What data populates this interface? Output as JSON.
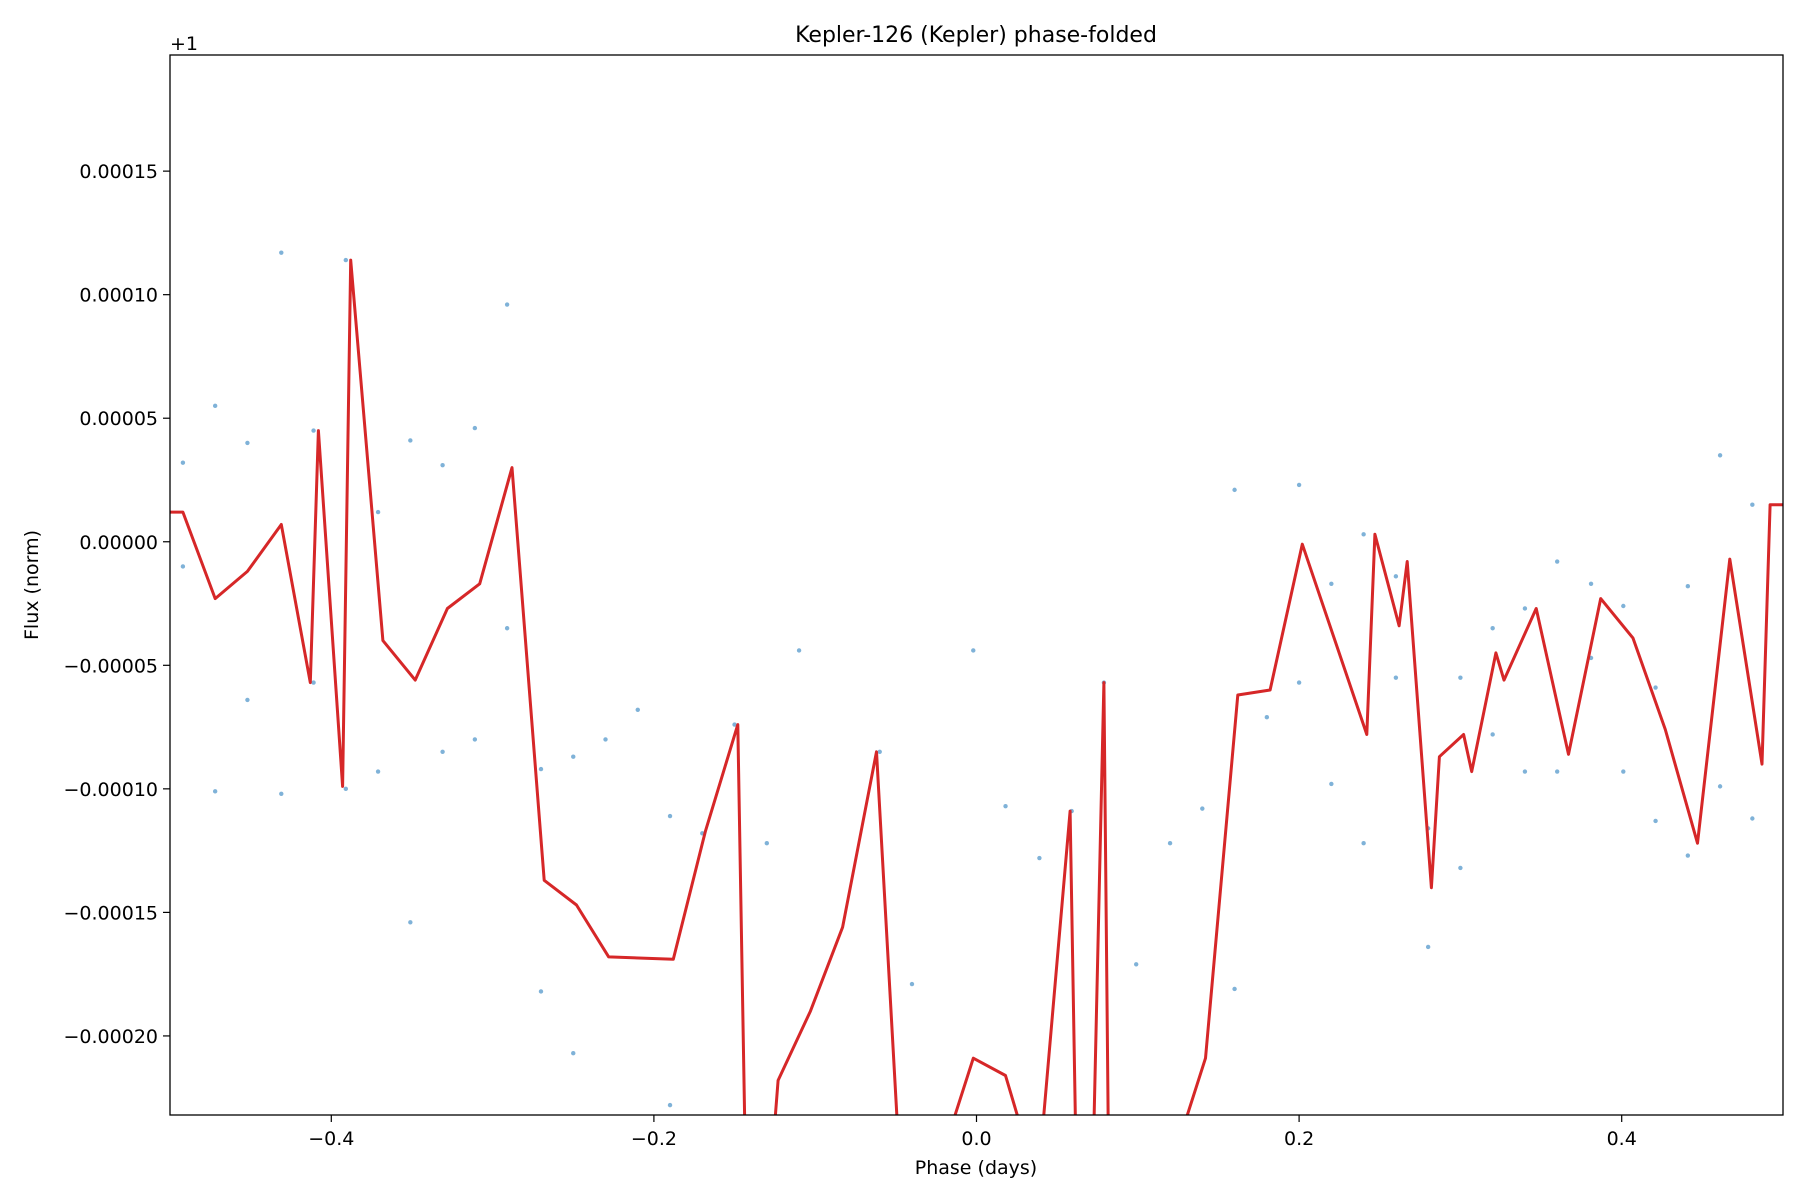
{
  "chart_data": {
    "type": "scatter",
    "title": "Kepler-126 (Kepler) phase-folded",
    "xlabel": "Phase (days)",
    "ylabel": "Flux (norm)",
    "y_offset_label": "+1",
    "xlim": [
      -0.5,
      0.5
    ],
    "ylim": [
      -0.000232,
      0.000197
    ],
    "x_ticks": [
      -0.4,
      -0.2,
      0.0,
      0.2,
      0.4
    ],
    "x_tick_labels": [
      "−0.4",
      "−0.2",
      "0.0",
      "0.2",
      "0.4"
    ],
    "y_ticks": [
      -0.0002,
      -0.00015,
      -0.0001,
      -5e-05,
      0.0,
      5e-05,
      0.0001,
      0.00015
    ],
    "y_tick_labels": [
      "−0.00020",
      "−0.00015",
      "−0.00010",
      "−0.00005",
      "0.00000",
      "0.00005",
      "0.00010",
      "0.00015"
    ],
    "grid": false,
    "colors": {
      "points": "#7fb2d8",
      "binned_line": "#d62728"
    },
    "series": [
      {
        "kind": "scatter",
        "points": [
          [
            -0.492,
            3.2e-05
          ],
          [
            -0.492,
            -1e-05
          ],
          [
            -0.472,
            5.5e-05
          ],
          [
            -0.472,
            -0.000101
          ],
          [
            -0.452,
            4e-05
          ],
          [
            -0.452,
            -6.4e-05
          ],
          [
            -0.431,
            0.000117
          ],
          [
            -0.431,
            -0.000102
          ],
          [
            -0.411,
            4.5e-05
          ],
          [
            -0.411,
            -5.7e-05
          ],
          [
            -0.391,
            0.000114
          ],
          [
            -0.391,
            -0.0001
          ],
          [
            -0.371,
            1.2e-05
          ],
          [
            -0.371,
            -9.3e-05
          ],
          [
            -0.351,
            4.1e-05
          ],
          [
            -0.351,
            -0.000154
          ],
          [
            -0.331,
            3.1e-05
          ],
          [
            -0.331,
            -8.5e-05
          ],
          [
            -0.311,
            4.6e-05
          ],
          [
            -0.311,
            -8e-05
          ],
          [
            -0.291,
            9.6e-05
          ],
          [
            -0.291,
            -3.5e-05
          ],
          [
            -0.27,
            -9.2e-05
          ],
          [
            -0.27,
            -0.000182
          ],
          [
            -0.25,
            -8.7e-05
          ],
          [
            -0.25,
            -0.000207
          ],
          [
            -0.23,
            -8e-05
          ],
          [
            -0.21,
            -6.8e-05
          ],
          [
            -0.19,
            -0.000111
          ],
          [
            -0.19,
            -0.000228
          ],
          [
            -0.17,
            -0.000118
          ],
          [
            -0.15,
            -7.4e-05
          ],
          [
            -0.13,
            -0.000122
          ],
          [
            -0.11,
            -4.4e-05
          ],
          [
            -0.06,
            -8.5e-05
          ],
          [
            -0.04,
            -0.000179
          ],
          [
            -0.002,
            -4.4e-05
          ],
          [
            0.018,
            -0.000107
          ],
          [
            0.039,
            -0.000128
          ],
          [
            0.059,
            -0.000109
          ],
          [
            0.079,
            -5.7e-05
          ],
          [
            0.099,
            -0.000171
          ],
          [
            0.12,
            -0.000122
          ],
          [
            0.14,
            -0.000108
          ],
          [
            0.16,
            2.1e-05
          ],
          [
            0.16,
            -0.000181
          ],
          [
            0.18,
            -7.1e-05
          ],
          [
            0.2,
            2.3e-05
          ],
          [
            0.2,
            -5.7e-05
          ],
          [
            0.22,
            -1.7e-05
          ],
          [
            0.22,
            -9.8e-05
          ],
          [
            0.24,
            3e-06
          ],
          [
            0.24,
            -0.000122
          ],
          [
            0.26,
            -1.4e-05
          ],
          [
            0.26,
            -5.5e-05
          ],
          [
            0.28,
            -0.000116
          ],
          [
            0.28,
            -0.000164
          ],
          [
            0.3,
            -5.5e-05
          ],
          [
            0.3,
            -0.000132
          ],
          [
            0.32,
            -3.5e-05
          ],
          [
            0.32,
            -7.8e-05
          ],
          [
            0.34,
            -2.7e-05
          ],
          [
            0.34,
            -9.3e-05
          ],
          [
            0.36,
            -8e-06
          ],
          [
            0.36,
            -9.3e-05
          ],
          [
            0.381,
            -1.7e-05
          ],
          [
            0.381,
            -4.7e-05
          ],
          [
            0.401,
            -2.6e-05
          ],
          [
            0.401,
            -9.3e-05
          ],
          [
            0.421,
            -5.9e-05
          ],
          [
            0.421,
            -0.000113
          ],
          [
            0.441,
            -1.8e-05
          ],
          [
            0.441,
            -0.000127
          ],
          [
            0.461,
            3.5e-05
          ],
          [
            0.461,
            -9.9e-05
          ],
          [
            0.481,
            1.5e-05
          ],
          [
            0.481,
            -0.000112
          ]
        ]
      },
      {
        "kind": "line",
        "points": [
          [
            -0.5,
            1.2e-05
          ],
          [
            -0.492,
            1.2e-05
          ],
          [
            -0.472,
            -2.3e-05
          ],
          [
            -0.452,
            -1.2e-05
          ],
          [
            -0.431,
            7e-06
          ],
          [
            -0.413,
            -5.7e-05
          ],
          [
            -0.408,
            4.5e-05
          ],
          [
            -0.393,
            -9.9e-05
          ],
          [
            -0.388,
            0.000114
          ],
          [
            -0.368,
            -4e-05
          ],
          [
            -0.348,
            -5.6e-05
          ],
          [
            -0.328,
            -2.7e-05
          ],
          [
            -0.308,
            -1.7e-05
          ],
          [
            -0.288,
            3e-05
          ],
          [
            -0.268,
            -0.000137
          ],
          [
            -0.248,
            -0.000147
          ],
          [
            -0.228,
            -0.000168
          ],
          [
            -0.188,
            -0.000169
          ],
          [
            -0.168,
            -0.000117
          ],
          [
            -0.148,
            -7.4e-05
          ],
          [
            -0.143,
            -0.00026
          ],
          [
            -0.128,
            -0.00026
          ],
          [
            -0.123,
            -0.000218
          ],
          [
            -0.103,
            -0.00019
          ],
          [
            -0.083,
            -0.000156
          ],
          [
            -0.062,
            -8.5e-05
          ],
          [
            -0.047,
            -0.00026
          ],
          [
            -0.027,
            -0.00026
          ],
          [
            -0.002,
            -0.000209
          ],
          [
            0.018,
            -0.000216
          ],
          [
            0.038,
            -0.00026
          ],
          [
            0.058,
            -0.000109
          ],
          [
            0.062,
            -0.00026
          ],
          [
            0.072,
            -0.00026
          ],
          [
            0.079,
            -5.7e-05
          ],
          [
            0.082,
            -0.00026
          ],
          [
            0.117,
            -0.00026
          ],
          [
            0.142,
            -0.000209
          ],
          [
            0.162,
            -6.2e-05
          ],
          [
            0.182,
            -6e-05
          ],
          [
            0.202,
            -1e-06
          ],
          [
            0.242,
            -7.8e-05
          ],
          [
            0.247,
            3e-06
          ],
          [
            0.262,
            -3.4e-05
          ],
          [
            0.267,
            -8e-06
          ],
          [
            0.282,
            -0.00014
          ],
          [
            0.287,
            -8.7e-05
          ],
          [
            0.302,
            -7.8e-05
          ],
          [
            0.307,
            -9.3e-05
          ],
          [
            0.322,
            -4.5e-05
          ],
          [
            0.327,
            -5.6e-05
          ],
          [
            0.347,
            -2.7e-05
          ],
          [
            0.367,
            -8.6e-05
          ],
          [
            0.387,
            -2.3e-05
          ],
          [
            0.407,
            -3.9e-05
          ],
          [
            0.427,
            -7.6e-05
          ],
          [
            0.447,
            -0.000122
          ],
          [
            0.467,
            -7e-06
          ],
          [
            0.487,
            -9e-05
          ],
          [
            0.492,
            1.5e-05
          ],
          [
            0.5,
            1.5e-05
          ]
        ]
      }
    ]
  }
}
